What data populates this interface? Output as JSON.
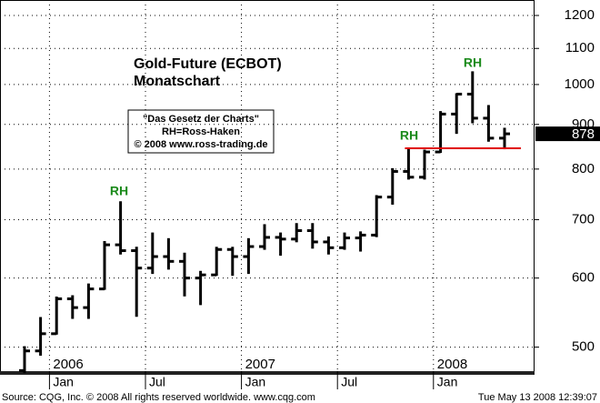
{
  "chart_data": {
    "type": "ohlc",
    "title": "Gold-Future (ECBOT)",
    "subtitle": "Monatschart",
    "note_lines": [
      "\"Das Gesetz der Charts\"",
      "RH=Ross-Haken",
      "© 2008 www.ross-trading.de"
    ],
    "annotations": [
      "RH",
      "RH",
      "RH"
    ],
    "categories": [
      null,
      null,
      "Jan",
      null,
      null,
      null,
      null,
      null,
      "Jul",
      null,
      null,
      null,
      null,
      null,
      "Jan",
      null,
      null,
      null,
      null,
      null,
      "Jul",
      null,
      null,
      null,
      null,
      null,
      "Jan",
      null,
      null,
      null,
      null
    ],
    "year_labels": [
      "2006",
      "2007",
      "2008"
    ],
    "series": [
      {
        "color": "#000000",
        "open": [
          470,
          495,
          518,
          568,
          555,
          583,
          655,
          645,
          616,
          635,
          627,
          600,
          605,
          647,
          635,
          652,
          668,
          665,
          680,
          660,
          650,
          667,
          672,
          743,
          795,
          783,
          837,
          925,
          975,
          915,
          868
        ],
        "high": [
          500,
          540,
          570,
          572,
          590,
          660,
          733,
          650,
          675,
          665,
          640,
          610,
          650,
          650,
          665,
          690,
          675,
          692,
          692,
          668,
          675,
          677,
          745,
          800,
          845,
          840,
          930,
          975,
          1033,
          945,
          890
        ],
        "low": [
          468,
          490,
          518,
          540,
          540,
          583,
          640,
          543,
          608,
          615,
          573,
          560,
          605,
          605,
          608,
          648,
          638,
          661,
          650,
          640,
          648,
          645,
          670,
          730,
          780,
          780,
          837,
          880,
          905,
          862,
          845
        ],
        "close": [
          495,
          518,
          568,
          555,
          583,
          655,
          645,
          616,
          635,
          627,
          600,
          605,
          647,
          635,
          652,
          668,
          665,
          680,
          660,
          650,
          667,
          672,
          743,
          795,
          783,
          837,
          925,
          975,
          915,
          868,
          878
        ]
      }
    ],
    "support_line": {
      "value": 845,
      "color": "#e00000"
    },
    "last_price": 878,
    "log_scale": true,
    "ylim": [
      467,
      1250
    ],
    "yticks": [
      500,
      600,
      700,
      800,
      900,
      1000,
      1100,
      1200
    ],
    "grid": true,
    "source": "Source: CQG, Inc. © 2008 All rights reserved worldwide. www.cqg.com",
    "timestamp": "Tue May 13 2008 12:39:07"
  }
}
